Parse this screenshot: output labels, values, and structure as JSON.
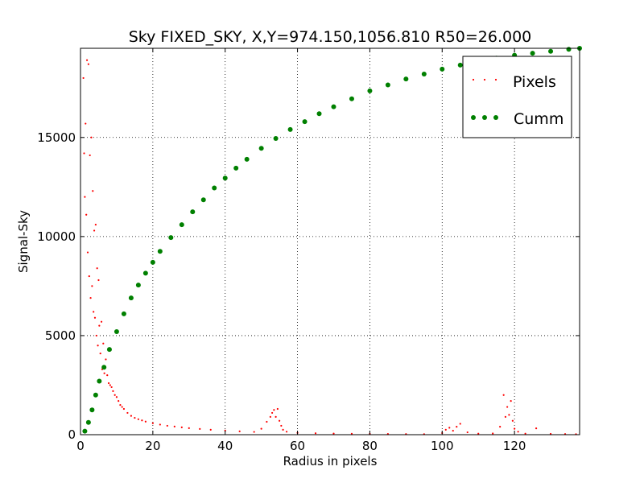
{
  "chart_data": {
    "type": "scatter",
    "title": "Sky FIXED_SKY, X,Y=974.150,1056.810 R50=26.000",
    "xlabel": "Radius in pixels",
    "ylabel": "Signal-Sky",
    "xlim": [
      0,
      138
    ],
    "ylim": [
      0,
      19500
    ],
    "x_ticks": [
      0,
      20,
      40,
      60,
      80,
      100,
      120
    ],
    "y_ticks": [
      0,
      5000,
      10000,
      15000
    ],
    "x_tick_labels": [
      "0",
      "20",
      "40",
      "60",
      "80",
      "100",
      "120"
    ],
    "y_tick_labels": [
      "0",
      "5000",
      "10000",
      "15000"
    ],
    "grid": true,
    "legend_position": "top-right",
    "series": [
      {
        "name": "Pixels",
        "marker": "small-dot",
        "color": "#ff0000",
        "x": [
          0.8,
          1.0,
          1.2,
          1.4,
          1.6,
          1.8,
          2.0,
          2.2,
          2.4,
          2.6,
          2.8,
          3.0,
          3.2,
          3.4,
          3.6,
          3.8,
          4.0,
          4.2,
          4.4,
          4.6,
          4.8,
          5.0,
          5.2,
          5.5,
          5.8,
          6.0,
          6.3,
          6.6,
          7.0,
          7.4,
          7.8,
          8.2,
          8.6,
          9.0,
          9.5,
          10.0,
          10.5,
          11.0,
          11.5,
          12.0,
          13.0,
          14.0,
          15.0,
          16.0,
          17.0,
          18.0,
          20.0,
          22.0,
          24.0,
          26.0,
          28.0,
          30.0,
          33.0,
          36.0,
          40.0,
          44.0,
          48.0,
          50.0,
          51.5,
          52.5,
          53.0,
          53.5,
          54.0,
          54.5,
          55.0,
          55.5,
          56.0,
          57.0,
          60.0,
          65.0,
          70.0,
          75.0,
          80.0,
          85.0,
          90.0,
          95.0,
          100.0,
          101.0,
          102.0,
          103.0,
          104.0,
          105.0,
          107.0,
          110.0,
          114.0,
          116.0,
          117.0,
          117.5,
          118.0,
          118.5,
          119.0,
          119.5,
          120.0,
          121.0,
          123.0,
          126.0,
          130.0,
          134.0,
          137.0
        ],
        "y": [
          18000,
          14200,
          12000,
          15700,
          11100,
          18900,
          9200,
          18700,
          8000,
          14100,
          6900,
          15000,
          7500,
          12300,
          6200,
          10300,
          5900,
          10600,
          5000,
          8400,
          4500,
          7800,
          5500,
          4100,
          5700,
          3300,
          4600,
          3100,
          3800,
          3000,
          2600,
          2500,
          2400,
          2200,
          2000,
          1900,
          1700,
          1500,
          1400,
          1300,
          1100,
          950,
          850,
          780,
          720,
          660,
          580,
          510,
          450,
          410,
          370,
          330,
          290,
          250,
          210,
          170,
          140,
          300,
          650,
          900,
          1100,
          1250,
          900,
          1300,
          700,
          450,
          250,
          150,
          90,
          70,
          55,
          45,
          40,
          35,
          30,
          28,
          80,
          250,
          350,
          200,
          400,
          550,
          120,
          50,
          60,
          400,
          2000,
          900,
          1400,
          1000,
          1700,
          700,
          300,
          150,
          50,
          320,
          40,
          30,
          25
        ]
      },
      {
        "name": "Cumm",
        "marker": "large-dot",
        "color": "#008000",
        "x": [
          1.2,
          2.2,
          3.2,
          4.2,
          5.2,
          6.5,
          8,
          10,
          12,
          14,
          16,
          18,
          20,
          22,
          25,
          28,
          31,
          34,
          37,
          40,
          43,
          46,
          50,
          54,
          58,
          62,
          66,
          70,
          75,
          80,
          85,
          90,
          95,
          100,
          105,
          110,
          115,
          120,
          125,
          130,
          135,
          138
        ],
        "y": [
          180,
          620,
          1250,
          2000,
          2700,
          3400,
          4300,
          5200,
          6100,
          6900,
          7550,
          8150,
          8700,
          9250,
          9950,
          10600,
          11250,
          11850,
          12450,
          12950,
          13450,
          13900,
          14450,
          14950,
          15400,
          15800,
          16200,
          16550,
          16950,
          17350,
          17650,
          17950,
          18200,
          18450,
          18650,
          18850,
          19000,
          19150,
          19250,
          19350,
          19450,
          19500
        ]
      }
    ]
  }
}
